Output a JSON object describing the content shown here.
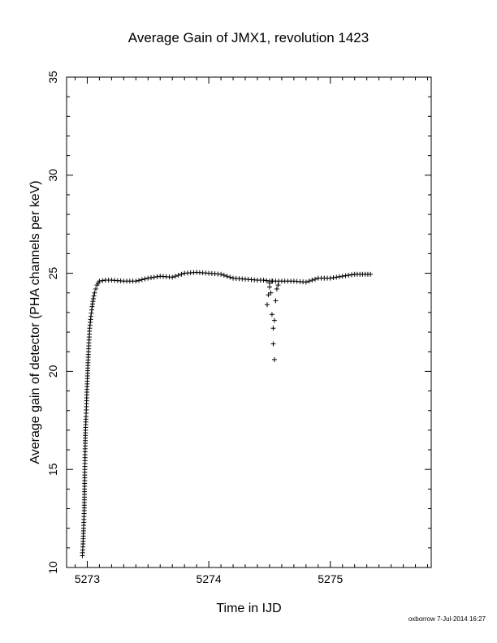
{
  "chart_data": {
    "type": "scatter",
    "title": "Average Gain of JMX1, revolution 1423",
    "xlabel": "Time in IJD",
    "ylabel": "Average gain of detector (PHA channels per keV)",
    "xlim": [
      5272.83,
      5275.83
    ],
    "ylim": [
      10,
      35
    ],
    "xticks": [
      "5273",
      "5274",
      "5275"
    ],
    "yticks": [
      "10",
      "15",
      "20",
      "25",
      "30",
      "35"
    ],
    "marker": "plus",
    "color": "#000000",
    "segments": [
      {
        "x": [
          5272.96,
          5272.965,
          5272.97,
          5272.975,
          5272.978,
          5272.98,
          5272.983,
          5272.986,
          5272.99,
          5272.993,
          5272.996,
          5273.0,
          5273.005,
          5273.01,
          5273.015,
          5273.02,
          5273.03,
          5273.04,
          5273.05,
          5273.06,
          5273.07,
          5273.08,
          5273.1,
          5273.15,
          5273.2,
          5273.3,
          5273.4,
          5273.5,
          5273.6,
          5273.7,
          5273.8,
          5273.9,
          5274.0,
          5274.1,
          5274.2,
          5274.3,
          5274.4,
          5274.45,
          5274.5,
          5274.6,
          5274.7,
          5274.8,
          5274.9,
          5275.0,
          5275.1,
          5275.2,
          5275.33
        ],
        "y": [
          10.6,
          11.2,
          12.0,
          12.9,
          14.0,
          15.0,
          16.2,
          17.0,
          17.7,
          18.2,
          18.8,
          19.5,
          20.3,
          21.0,
          21.6,
          22.2,
          22.8,
          23.3,
          23.7,
          24.0,
          24.2,
          24.4,
          24.6,
          24.65,
          24.65,
          24.6,
          24.6,
          24.75,
          24.85,
          24.8,
          25.0,
          25.05,
          25.0,
          24.95,
          24.75,
          24.7,
          24.65,
          24.65,
          24.6,
          24.6,
          24.6,
          24.55,
          24.75,
          24.75,
          24.85,
          24.95,
          24.95
        ]
      }
    ],
    "outliers": {
      "x": [
        5274.48,
        5274.49,
        5274.5,
        5274.5,
        5274.51,
        5274.52,
        5274.52,
        5274.53,
        5274.53,
        5274.54,
        5274.54,
        5274.55,
        5274.56,
        5274.57
      ],
      "y": [
        23.4,
        23.9,
        24.3,
        24.5,
        24.0,
        22.9,
        24.6,
        21.4,
        22.2,
        20.6,
        22.6,
        23.6,
        24.2,
        24.4
      ]
    }
  },
  "footer": "oxborrow  7-Jul-2014 16:27"
}
